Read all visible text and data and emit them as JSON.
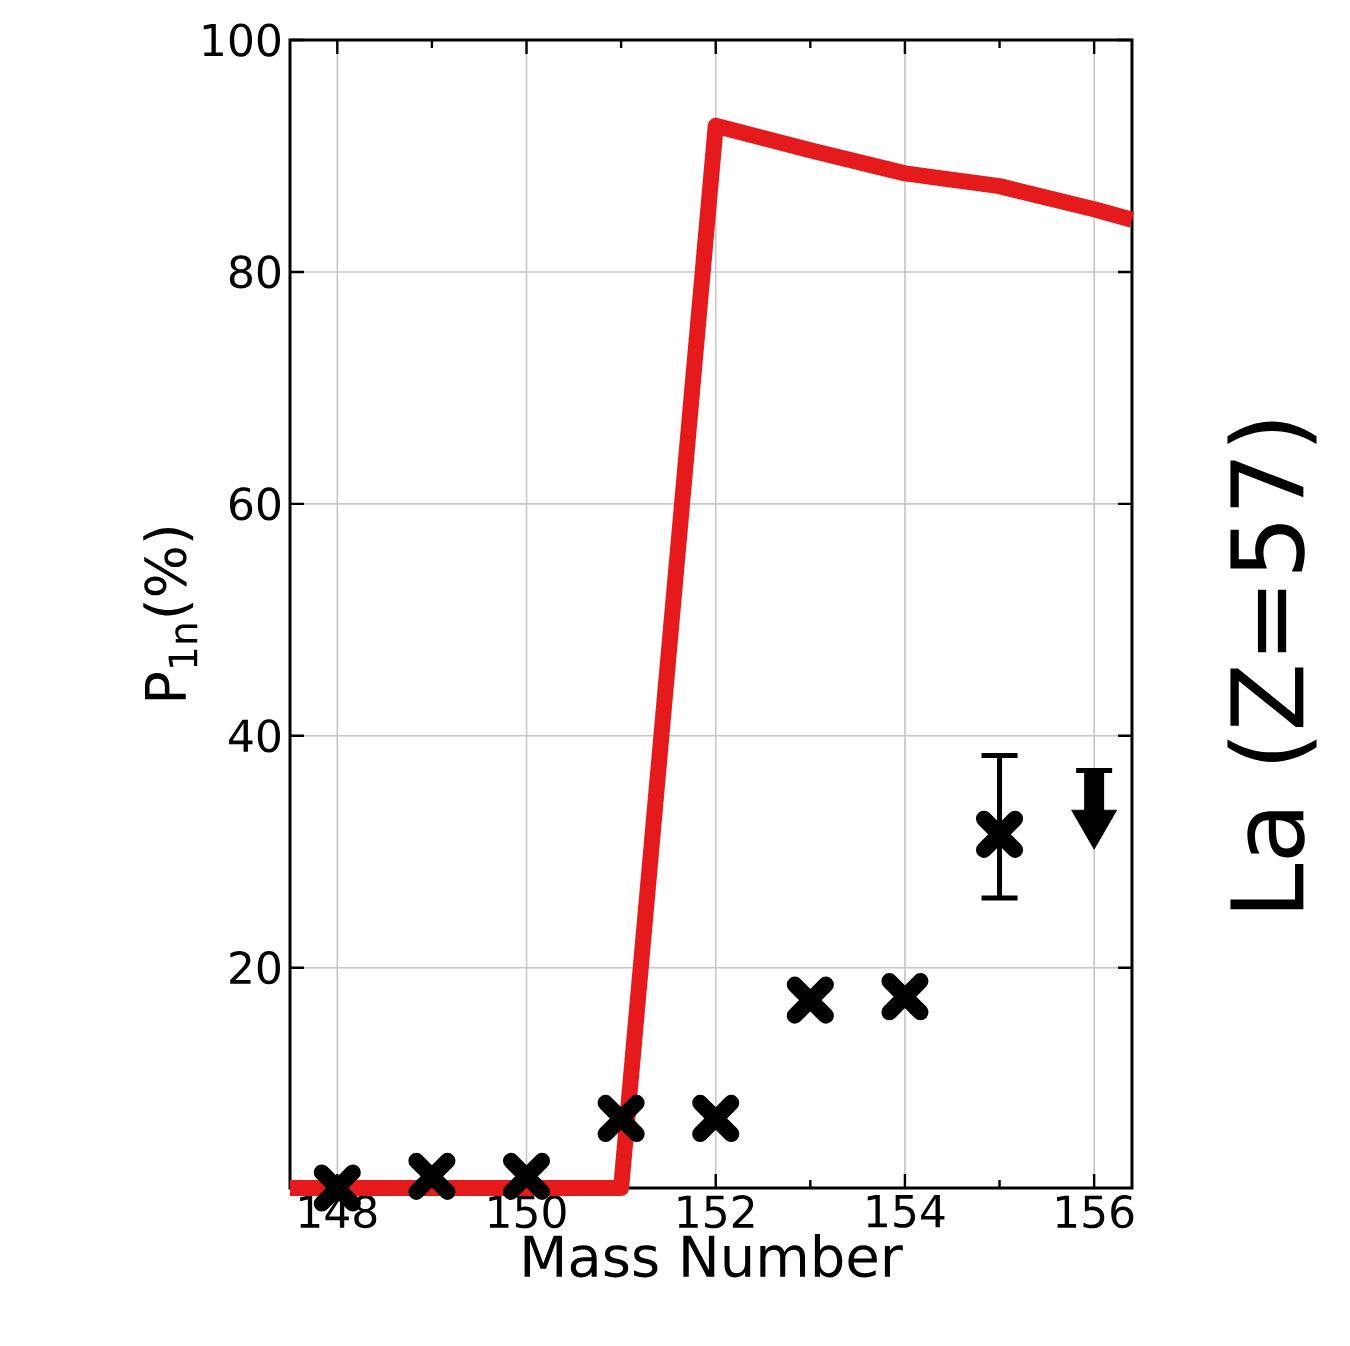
{
  "chart_data": {
    "type": "scatter",
    "xlabel": "Mass Number",
    "ylabel": "P$_{1n}$(%)",
    "xlim": [
      147.5,
      156.4
    ],
    "ylim": [
      1,
      100
    ],
    "xticks": [
      148,
      150,
      152,
      154,
      156
    ],
    "yticks": [
      20,
      40,
      60,
      80,
      100
    ],
    "grid": true,
    "annotations": [
      "La (Z=57)"
    ],
    "series": [
      {
        "type": "line",
        "color": "#e41a1c",
        "marker": "none",
        "line_style": "solid",
        "x": [
          147.5,
          151,
          152,
          153,
          154,
          155,
          156,
          156.4
        ],
        "values": [
          1,
          1,
          92.6,
          90.5,
          88.5,
          87.4,
          85.4,
          84.5
        ]
      },
      {
        "color": "#000000",
        "marker": "cross",
        "x": [
          148,
          149,
          150,
          151,
          152,
          153,
          154,
          155
        ],
        "values": [
          1,
          2,
          2,
          7,
          7,
          17.2,
          17.5,
          31.5
        ],
        "errors": [
          null,
          null,
          null,
          null,
          null,
          null,
          null,
          [
            26,
            38.3
          ]
        ]
      },
      {
        "color": "#000000",
        "marker": "triangle",
        "x": [
          156
        ],
        "values": [
          31.9
        ],
        "errors": [
          [
            31.9,
            37
          ]
        ]
      }
    ]
  }
}
